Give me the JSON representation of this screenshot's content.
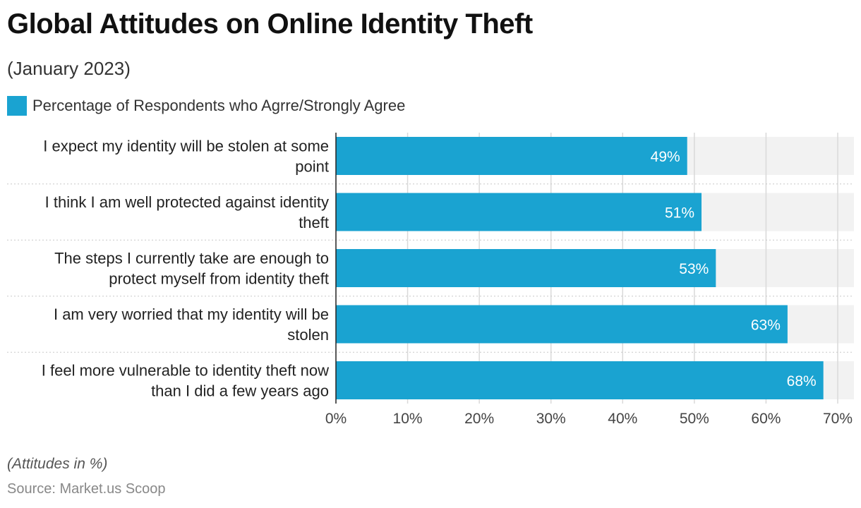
{
  "header": {
    "title": "Global Attitudes on Online Identity Theft",
    "subtitle": "(January 2023)"
  },
  "footer": {
    "note": "(Attitudes in %)",
    "source": "Source: Market.us Scoop"
  },
  "colors": {
    "bar": "#1aa3d1",
    "track": "#f2f2f2",
    "grid": "#d9d9d9",
    "bar_label": "#ffffff"
  },
  "chart_data": {
    "type": "bar",
    "orientation": "horizontal",
    "categories": [
      [
        "I expect my identity will be stolen at some",
        "point"
      ],
      [
        "I think I am well protected against identity",
        "theft"
      ],
      [
        "The steps I currently take are enough to",
        "protect myself from identity theft"
      ],
      [
        "I am very worried that my identity will be",
        "stolen"
      ],
      [
        "I feel more vulnerable to identity theft now",
        "than I did a few years ago"
      ]
    ],
    "series": [
      {
        "name": "Percentage of Respondents who Agrre/Strongly Agree",
        "values": [
          49,
          51,
          53,
          63,
          68
        ]
      }
    ],
    "data_labels": [
      "49%",
      "51%",
      "53%",
      "63%",
      "68%"
    ],
    "xlim": [
      0,
      70
    ],
    "ticks": [
      0,
      10,
      20,
      30,
      40,
      50,
      60,
      70
    ],
    "tick_labels": [
      "0%",
      "10%",
      "20%",
      "30%",
      "40%",
      "50%",
      "60%",
      "70%"
    ],
    "grid": true,
    "legend": "top-left"
  }
}
